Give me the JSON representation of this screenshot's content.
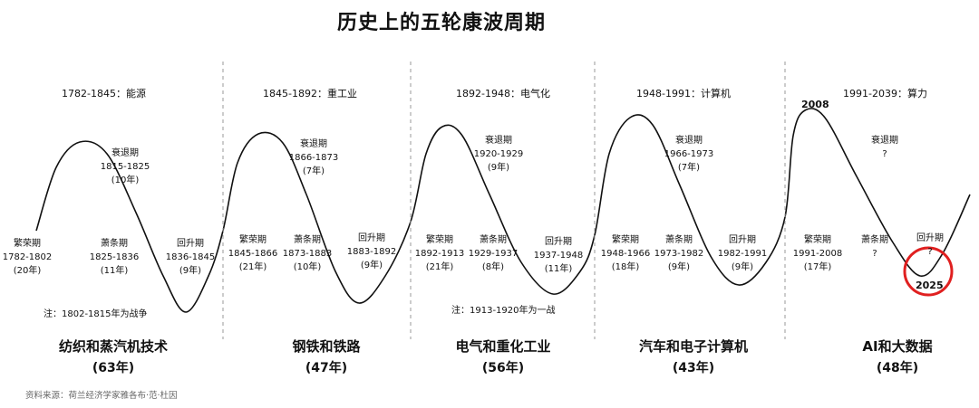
{
  "title": "历史上的五轮康波周期",
  "source": "资料来源：荷兰经济学家雅各布·范·杜因",
  "cycles": [
    {
      "era": "1782-1845：能源",
      "tech": "纺织和蒸汽机技术",
      "years": "(63年)",
      "prosperity": "繁荣期\n1782-1802\n(20年)",
      "recession": "衰退期\n1815-1825\n(10年)",
      "depression": "萧条期\n1825-1836\n(11年)",
      "recovery": "回升期\n1836-1845\n(9年)",
      "note": "注：1802-1815年为战争"
    },
    {
      "era": "1845-1892：重工业",
      "tech": "钢铁和铁路",
      "years": "(47年)",
      "prosperity": "繁荣期\n1845-1866\n(21年)",
      "recession": "衰退期\n1866-1873\n(7年)",
      "depression": "萧条期\n1873-1883\n(10年)",
      "recovery": "回升期\n1883-1892\n(9年)"
    },
    {
      "era": "1892-1948：电气化",
      "tech": "电气和重化工业",
      "years": "(56年)",
      "prosperity": "繁荣期\n1892-1913\n(21年)",
      "recession": "衰退期\n1920-1929\n(9年)",
      "depression": "萧条期\n1929-1937\n(8年)",
      "recovery": "回升期\n1937-1948\n(11年)",
      "note": "注：1913-1920年为一战"
    },
    {
      "era": "1948-1991：计算机",
      "tech": "汽车和电子计算机",
      "years": "(43年)",
      "prosperity": "繁荣期\n1948-1966\n(18年)",
      "recession": "衰退期\n1966-1973\n(7年)",
      "depression": "萧条期\n1973-1982\n(9年)",
      "recovery": "回升期\n1982-1991\n(9年)"
    },
    {
      "era": "1991-2039：算力",
      "tech": "AI和大数据",
      "years": "(48年)",
      "prosperity": "繁荣期\n1991-2008\n(17年)",
      "recession": "衰退期\n?",
      "depression": "萧条期\n?",
      "recovery": "回升期\n?",
      "peak_year": "2008",
      "trough_year": "2025"
    }
  ],
  "colors": {
    "curve": "#111111",
    "divider": "#999999",
    "highlight": "#e02020"
  }
}
